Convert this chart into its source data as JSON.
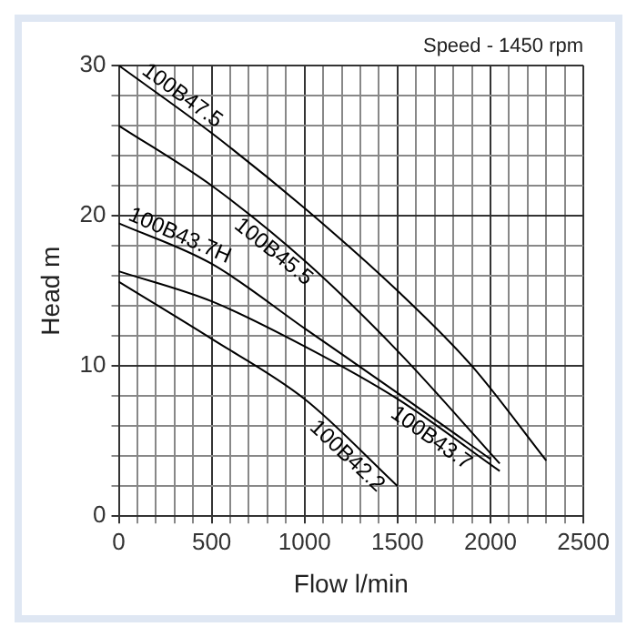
{
  "chart_data": {
    "type": "line",
    "xlabel": "Flow l/min",
    "ylabel": "Head m",
    "annotations": [
      "Speed - 1450 rpm"
    ],
    "xlim": [
      0,
      2500
    ],
    "ylim": [
      0,
      30
    ],
    "xticks": [
      0,
      {
        "value": 100,
        "label": null
      },
      {
        "value": 200,
        "label": null
      },
      {
        "value": 300,
        "label": null
      },
      {
        "value": 400,
        "label": null
      },
      500,
      {
        "value": 600,
        "label": null
      },
      {
        "value": 700,
        "label": null
      },
      {
        "value": 800,
        "label": null
      },
      {
        "value": 900,
        "label": null
      },
      1000,
      {
        "value": 1100,
        "label": null
      },
      {
        "value": 1200,
        "label": null
      },
      {
        "value": 1300,
        "label": null
      },
      {
        "value": 1400,
        "label": null
      },
      1500,
      {
        "value": 1600,
        "label": null
      },
      {
        "value": 1700,
        "label": null
      },
      {
        "value": 1800,
        "label": null
      },
      {
        "value": 1900,
        "label": null
      },
      2000,
      {
        "value": 2100,
        "label": null
      },
      {
        "value": 2200,
        "label": null
      },
      {
        "value": 2300,
        "label": null
      },
      {
        "value": 2400,
        "label": null
      },
      2500
    ],
    "yticks": [
      0,
      {
        "value": 2,
        "label": null
      },
      {
        "value": 4,
        "label": null
      },
      {
        "value": 6,
        "label": null
      },
      {
        "value": 8,
        "label": null
      },
      10,
      {
        "value": 12,
        "label": null
      },
      {
        "value": 14,
        "label": null
      },
      {
        "value": 16,
        "label": null
      },
      {
        "value": 18,
        "label": null
      },
      20,
      {
        "value": 22,
        "label": null
      },
      {
        "value": 24,
        "label": null
      },
      {
        "value": 26,
        "label": null
      },
      {
        "value": 28,
        "label": null
      },
      30
    ],
    "grid": true,
    "legend": false,
    "marker": "none",
    "line_style": "solid",
    "series": [
      {
        "name": "100B47.5",
        "color": "#000000",
        "x": [
          0,
          500,
          1000,
          1500,
          1900,
          2300
        ],
        "values": [
          30,
          25.5,
          20.5,
          15,
          10,
          3.7
        ]
      },
      {
        "name": "100B45.5",
        "color": "#000000",
        "x": [
          0,
          500,
          1000,
          1500,
          2050
        ],
        "values": [
          26,
          22,
          17,
          11,
          3.5
        ]
      },
      {
        "name": "100B43.7H",
        "color": "#000000",
        "x": [
          0,
          500,
          1000,
          1500,
          2000
        ],
        "values": [
          19.5,
          16.8,
          12.5,
          8.2,
          3.8
        ]
      },
      {
        "name": "100B43.7",
        "color": "#000000",
        "x": [
          0,
          500,
          1000,
          1500,
          2050
        ],
        "values": [
          16.3,
          14.3,
          11.3,
          7.8,
          3
        ]
      },
      {
        "name": "100B42.2",
        "color": "#000000",
        "x": [
          0,
          500,
          1000,
          1500
        ],
        "values": [
          15.6,
          11.8,
          7.8,
          2
        ]
      }
    ]
  }
}
